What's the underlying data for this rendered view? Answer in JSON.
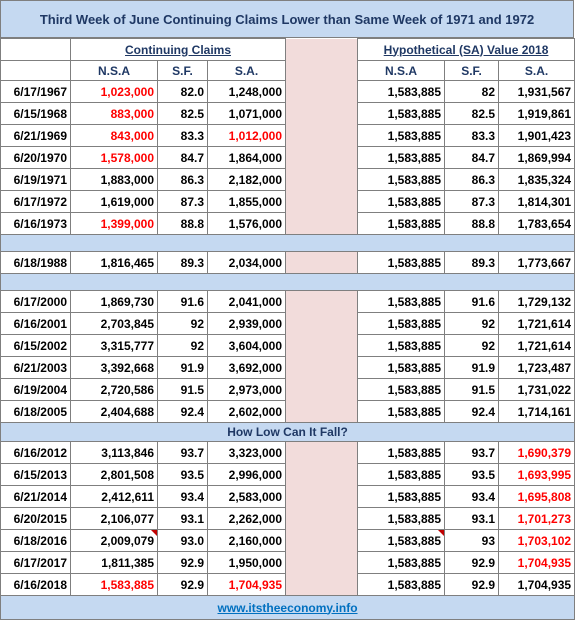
{
  "title": "Third Week of June Continuing Claims  Lower than Same Week of 1971 and 1972",
  "group_actual": "Continuing Claims",
  "group_hypo": "Hypothetical (SA) Value 2018",
  "col_nsa": "N.S.A",
  "col_sf": "S.F.",
  "col_sa": "S.A.",
  "section_low": "How Low Can It Fall?",
  "footer": "www.itstheeconomy.info",
  "accent_red": "#ff0000",
  "header_fill": "#c5d9f1",
  "divider_fill": "#f2dcdb",
  "rows": [
    {
      "date": "6/17/1967",
      "nsa": "1,023,000",
      "sf": "82.0",
      "sa": "1,248,000",
      "hnsa": "1,583,885",
      "hsf": "82",
      "hsa": "1,931,567"
    },
    {
      "date": "6/15/1968",
      "nsa": "883,000",
      "sf": "82.5",
      "sa": "1,071,000",
      "hnsa": "1,583,885",
      "hsf": "82.5",
      "hsa": "1,919,861"
    },
    {
      "date": "6/21/1969",
      "nsa": "843,000",
      "sf": "83.3",
      "sa": "1,012,000",
      "hnsa": "1,583,885",
      "hsf": "83.3",
      "hsa": "1,901,423"
    },
    {
      "date": "6/20/1970",
      "nsa": "1,578,000",
      "sf": "84.7",
      "sa": "1,864,000",
      "hnsa": "1,583,885",
      "hsf": "84.7",
      "hsa": "1,869,994"
    },
    {
      "date": "6/19/1971",
      "nsa": "1,883,000",
      "sf": "86.3",
      "sa": "2,182,000",
      "hnsa": "1,583,885",
      "hsf": "86.3",
      "hsa": "1,835,324"
    },
    {
      "date": "6/17/1972",
      "nsa": "1,619,000",
      "sf": "87.3",
      "sa": "1,855,000",
      "hnsa": "1,583,885",
      "hsf": "87.3",
      "hsa": "1,814,301"
    },
    {
      "date": "6/16/1973",
      "nsa": "1,399,000",
      "sf": "88.8",
      "sa": "1,576,000",
      "hnsa": "1,583,885",
      "hsf": "88.8",
      "hsa": "1,783,654"
    },
    {
      "date": "6/18/1988",
      "nsa": "1,816,465",
      "sf": "89.3",
      "sa": "2,034,000",
      "hnsa": "1,583,885",
      "hsf": "89.3",
      "hsa": "1,773,667"
    },
    {
      "date": "6/17/2000",
      "nsa": "1,869,730",
      "sf": "91.6",
      "sa": "2,041,000",
      "hnsa": "1,583,885",
      "hsf": "91.6",
      "hsa": "1,729,132"
    },
    {
      "date": "6/16/2001",
      "nsa": "2,703,845",
      "sf": "92",
      "sa": "2,939,000",
      "hnsa": "1,583,885",
      "hsf": "92",
      "hsa": "1,721,614"
    },
    {
      "date": "6/15/2002",
      "nsa": "3,315,777",
      "sf": "92",
      "sa": "3,604,000",
      "hnsa": "1,583,885",
      "hsf": "92",
      "hsa": "1,721,614"
    },
    {
      "date": "6/21/2003",
      "nsa": "3,392,668",
      "sf": "91.9",
      "sa": "3,692,000",
      "hnsa": "1,583,885",
      "hsf": "91.9",
      "hsa": "1,723,487"
    },
    {
      "date": "6/19/2004",
      "nsa": "2,720,586",
      "sf": "91.5",
      "sa": "2,973,000",
      "hnsa": "1,583,885",
      "hsf": "91.5",
      "hsa": "1,731,022"
    },
    {
      "date": "6/18/2005",
      "nsa": "2,404,688",
      "sf": "92.4",
      "sa": "2,602,000",
      "hnsa": "1,583,885",
      "hsf": "92.4",
      "hsa": "1,714,161"
    },
    {
      "date": "6/16/2012",
      "nsa": "3,113,846",
      "sf": "93.7",
      "sa": "3,323,000",
      "hnsa": "1,583,885",
      "hsf": "93.7",
      "hsa": "1,690,379"
    },
    {
      "date": "6/15/2013",
      "nsa": "2,801,508",
      "sf": "93.5",
      "sa": "2,996,000",
      "hnsa": "1,583,885",
      "hsf": "93.5",
      "hsa": "1,693,995"
    },
    {
      "date": "6/21/2014",
      "nsa": "2,412,611",
      "sf": "93.4",
      "sa": "2,583,000",
      "hnsa": "1,583,885",
      "hsf": "93.4",
      "hsa": "1,695,808"
    },
    {
      "date": "6/20/2015",
      "nsa": "2,106,077",
      "sf": "93.1",
      "sa": "2,262,000",
      "hnsa": "1,583,885",
      "hsf": "93.1",
      "hsa": "1,701,273"
    },
    {
      "date": "6/18/2016",
      "nsa": "2,009,079",
      "sf": "93.0",
      "sa": "2,160,000",
      "hnsa": "1,583,885",
      "hsf": "93",
      "hsa": "1,703,102"
    },
    {
      "date": "6/17/2017",
      "nsa": "1,811,385",
      "sf": "92.9",
      "sa": "1,950,000",
      "hnsa": "1,583,885",
      "hsf": "92.9",
      "hsa": "1,704,935"
    },
    {
      "date": "6/16/2018",
      "nsa": "1,583,885",
      "sf": "92.9",
      "sa": "1,704,935",
      "hnsa": "1,583,885",
      "hsf": "92.9",
      "hsa": "1,704,935"
    }
  ]
}
